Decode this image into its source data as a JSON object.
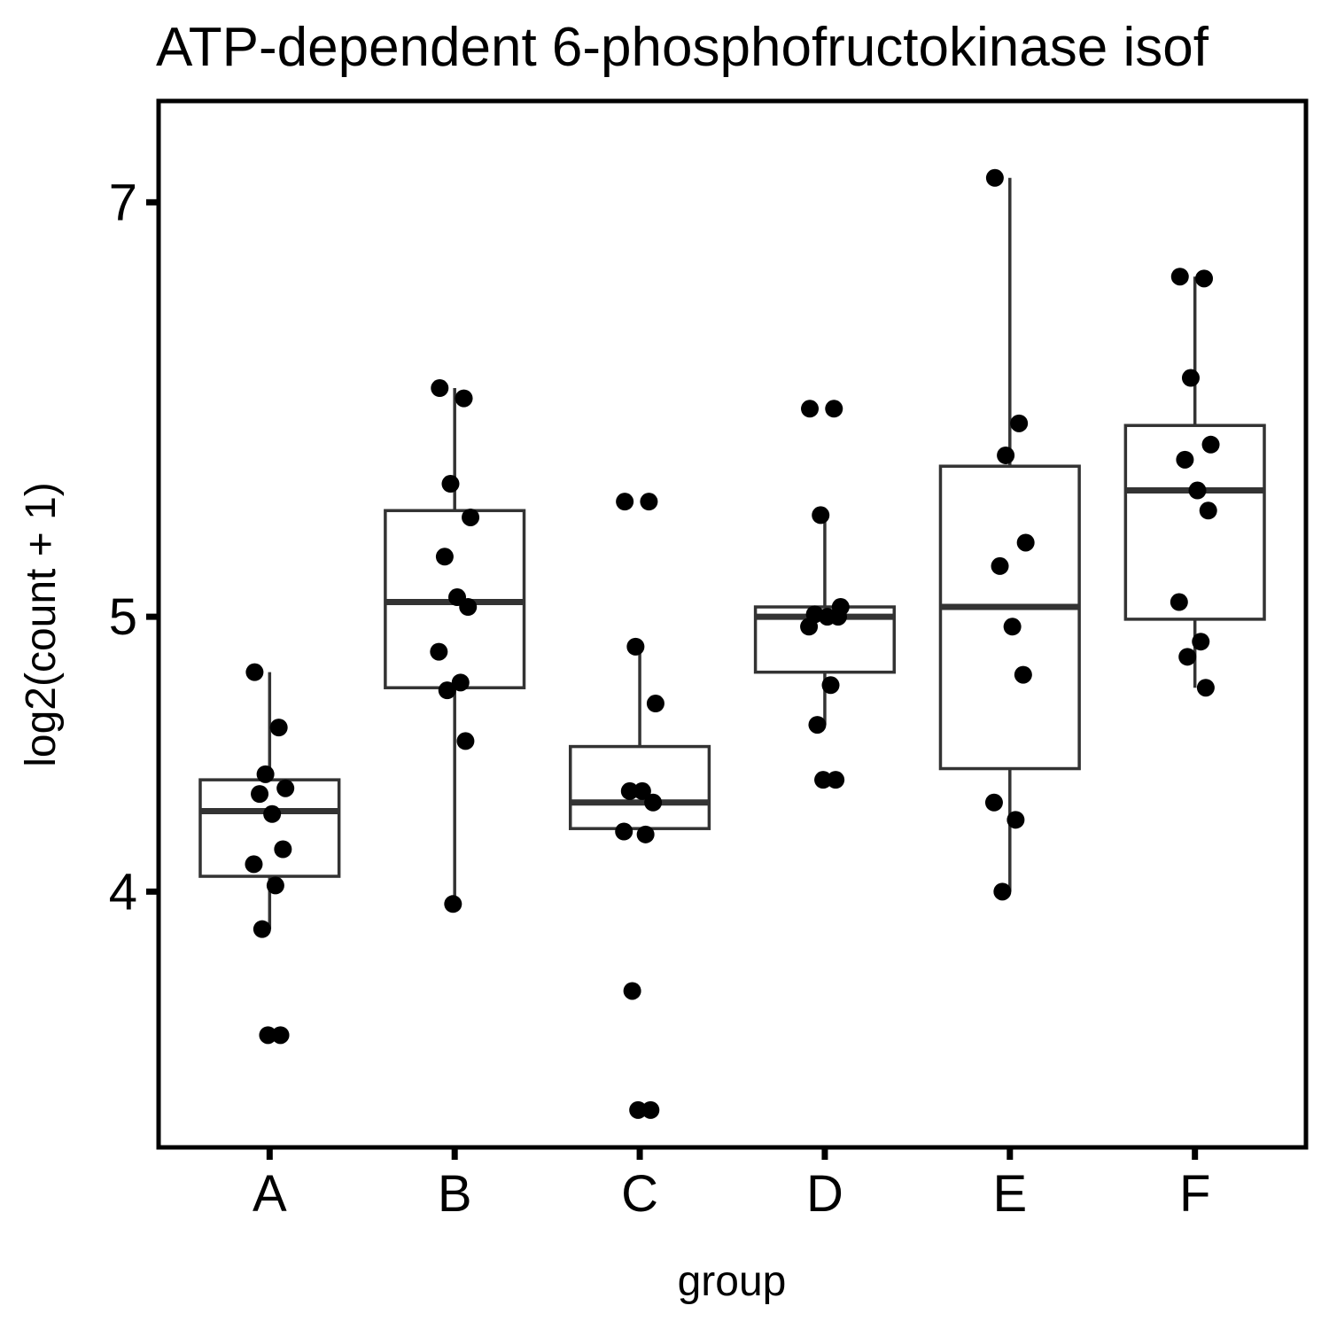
{
  "chart_data": {
    "type": "box",
    "title": "ATP-dependent 6-phosphofructokinase isof",
    "xlabel": "group",
    "ylabel": "log2(count + 1)",
    "categories": [
      "A",
      "B",
      "C",
      "D",
      "E",
      "F"
    ],
    "y_scale": "log",
    "y_ticks": [
      4,
      5,
      7
    ],
    "ylim": [
      3.25,
      7.6
    ],
    "grid": false,
    "legend": "none",
    "boxes": [
      {
        "group": "A",
        "min": 3.88,
        "q1": 4.05,
        "median": 4.27,
        "q3": 4.38,
        "max": 4.78
      },
      {
        "group": "B",
        "min": 3.96,
        "q1": 4.72,
        "median": 5.06,
        "q3": 5.45,
        "max": 6.02
      },
      {
        "group": "C",
        "min": 4.21,
        "q1": 4.21,
        "median": 4.3,
        "q3": 4.5,
        "max": 4.88
      },
      {
        "group": "D",
        "min": 4.58,
        "q1": 4.78,
        "median": 5.0,
        "q3": 5.04,
        "max": 5.43
      },
      {
        "group": "E",
        "min": 4.0,
        "q1": 4.42,
        "median": 5.04,
        "q3": 5.65,
        "max": 7.14
      },
      {
        "group": "F",
        "min": 4.72,
        "q1": 4.99,
        "median": 5.54,
        "q3": 5.84,
        "max": 6.59
      }
    ],
    "points": [
      {
        "group": "A",
        "values": [
          4.78,
          4.57,
          4.4,
          4.35,
          4.33,
          4.26,
          4.14,
          4.09,
          4.02,
          3.88,
          3.56,
          3.56
        ]
      },
      {
        "group": "B",
        "values": [
          6.02,
          5.97,
          5.57,
          5.42,
          5.25,
          5.08,
          5.04,
          4.86,
          4.74,
          4.71,
          4.52,
          3.96
        ]
      },
      {
        "group": "C",
        "values": [
          5.49,
          5.49,
          4.88,
          4.66,
          4.34,
          4.34,
          4.3,
          4.2,
          4.19,
          3.69,
          3.35,
          3.35
        ]
      },
      {
        "group": "D",
        "values": [
          5.92,
          5.92,
          5.43,
          5.04,
          5.01,
          5.0,
          5.0,
          4.96,
          4.73,
          4.58,
          4.38,
          4.38
        ]
      },
      {
        "group": "E",
        "values": [
          7.14,
          5.85,
          5.7,
          5.31,
          5.21,
          4.96,
          4.77,
          4.3,
          4.24,
          4.0
        ]
      },
      {
        "group": "F",
        "values": [
          6.59,
          6.58,
          6.07,
          5.75,
          5.68,
          5.54,
          5.45,
          5.06,
          4.9,
          4.84,
          4.72
        ]
      }
    ]
  }
}
